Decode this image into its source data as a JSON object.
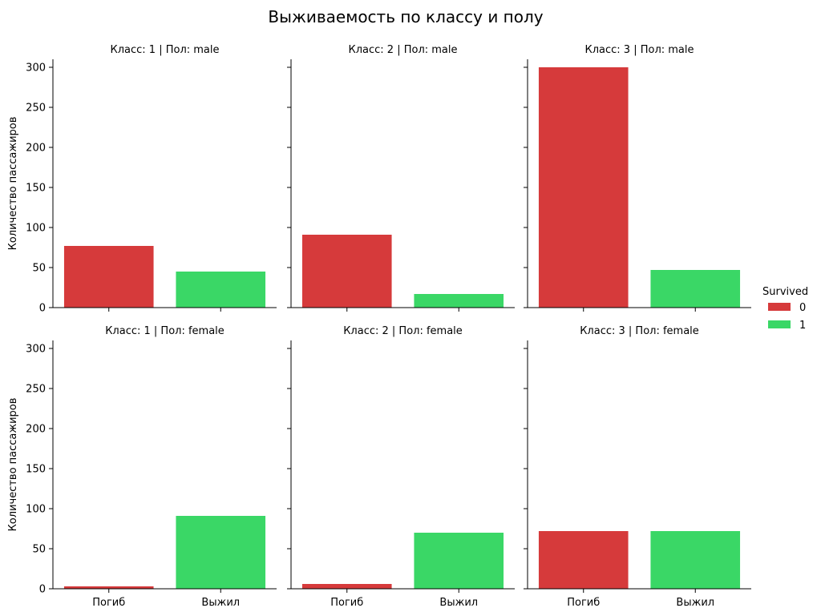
{
  "chart_data": {
    "type": "bar",
    "title": "Выживаемость по классу и полу",
    "ylabel": "Количество пассажиров",
    "xlabel": "",
    "categories": [
      "Погиб",
      "Выжил"
    ],
    "ylim": [
      0,
      310
    ],
    "yticks": [
      0,
      50,
      100,
      150,
      200,
      250,
      300
    ],
    "grid": false,
    "legend": {
      "title": "Survived",
      "position": "right",
      "entries": [
        {
          "label": "0",
          "color": "#d63a3b"
        },
        {
          "label": "1",
          "color": "#3ad766"
        }
      ]
    },
    "panels": [
      {
        "title": "Класс: 1 | Пол: male",
        "values": [
          77,
          45
        ]
      },
      {
        "title": "Класс: 2 | Пол: male",
        "values": [
          91,
          17
        ]
      },
      {
        "title": "Класс: 3 | Пол: male",
        "values": [
          300,
          47
        ]
      },
      {
        "title": "Класс: 1 | Пол: female",
        "values": [
          3,
          91
        ]
      },
      {
        "title": "Класс: 2 | Пол: female",
        "values": [
          6,
          70
        ]
      },
      {
        "title": "Класс: 3 | Пол: female",
        "values": [
          72,
          72
        ]
      }
    ]
  }
}
